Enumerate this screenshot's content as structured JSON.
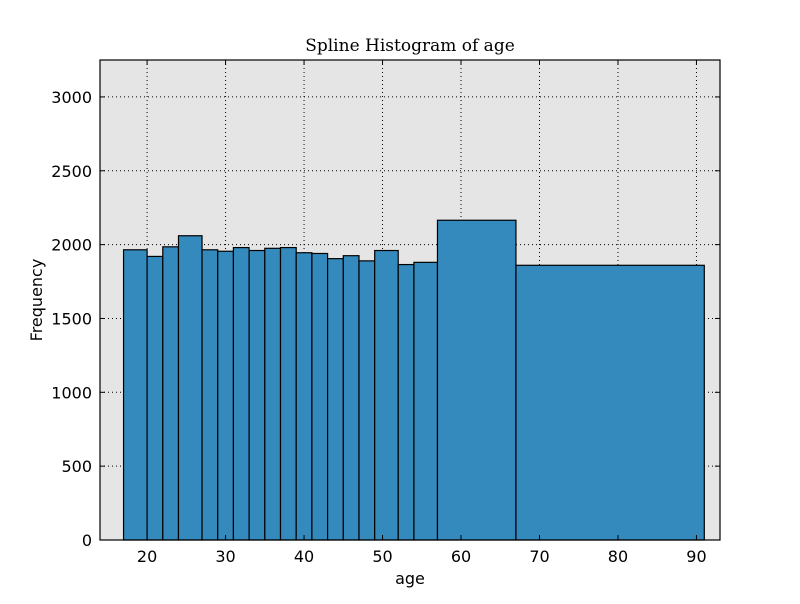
{
  "chart_data": {
    "type": "bar",
    "title": "Spline Histogram of age",
    "xlabel": "age",
    "ylabel": "Frequency",
    "xlim": [
      14,
      93
    ],
    "ylim": [
      0,
      3250
    ],
    "grid": true,
    "bar_color": "#348ABD",
    "bar_edge_color": "#000000",
    "background_color": "#E5E5E5",
    "x_ticks": [
      20,
      30,
      40,
      50,
      60,
      70,
      80,
      90
    ],
    "x_tick_labels": [
      "20",
      "30",
      "40",
      "50",
      "60",
      "70",
      "80",
      "90"
    ],
    "y_ticks": [
      0,
      500,
      1000,
      1500,
      2000,
      2500,
      3000
    ],
    "y_tick_labels": [
      "0",
      "500",
      "1000",
      "1500",
      "2000",
      "2500",
      "3000"
    ],
    "bins": [
      {
        "x0": 17.0,
        "x1": 20.0,
        "value": 1965
      },
      {
        "x0": 20.0,
        "x1": 22.0,
        "value": 1920
      },
      {
        "x0": 22.0,
        "x1": 24.0,
        "value": 1985
      },
      {
        "x0": 24.0,
        "x1": 27.0,
        "value": 2060
      },
      {
        "x0": 27.0,
        "x1": 29.0,
        "value": 1965
      },
      {
        "x0": 29.0,
        "x1": 31.0,
        "value": 1955
      },
      {
        "x0": 31.0,
        "x1": 33.0,
        "value": 1980
      },
      {
        "x0": 33.0,
        "x1": 35.0,
        "value": 1960
      },
      {
        "x0": 35.0,
        "x1": 37.0,
        "value": 1975
      },
      {
        "x0": 37.0,
        "x1": 39.0,
        "value": 1980
      },
      {
        "x0": 39.0,
        "x1": 41.0,
        "value": 1945
      },
      {
        "x0": 41.0,
        "x1": 43.0,
        "value": 1940
      },
      {
        "x0": 43.0,
        "x1": 45.0,
        "value": 1905
      },
      {
        "x0": 45.0,
        "x1": 47.0,
        "value": 1925
      },
      {
        "x0": 47.0,
        "x1": 49.0,
        "value": 1890
      },
      {
        "x0": 49.0,
        "x1": 52.0,
        "value": 1960
      },
      {
        "x0": 52.0,
        "x1": 54.0,
        "value": 1865
      },
      {
        "x0": 54.0,
        "x1": 57.0,
        "value": 1880
      },
      {
        "x0": 57.0,
        "x1": 67.0,
        "value": 2165
      },
      {
        "x0": 67.0,
        "x1": 91.0,
        "value": 1860
      }
    ]
  }
}
